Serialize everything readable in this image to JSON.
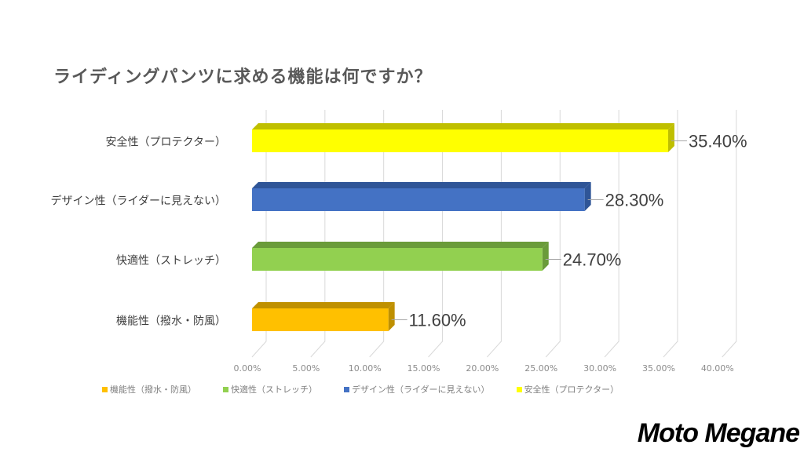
{
  "chart_data": {
    "type": "bar",
    "orientation": "horizontal",
    "style": "3d",
    "title": "ライディングパンツに求める機能は何ですか？",
    "categories": [
      "安全性（プロテクター）",
      "デザイン性（ライダーに見えない）",
      "快適性（ストレッチ）",
      "機能性（撥水・防風）"
    ],
    "values": [
      35.4,
      28.3,
      24.7,
      11.6
    ],
    "data_labels": [
      "35.40%",
      "28.30%",
      "24.70%",
      "11.60%"
    ],
    "colors": [
      "#FFFF00",
      "#4472C4",
      "#92D050",
      "#FFC000"
    ],
    "side_colors": [
      "#BFBF00",
      "#2F5597",
      "#6A9B3A",
      "#BF9000"
    ],
    "xlim": [
      0,
      40
    ],
    "xticks": [
      "0.00%",
      "5.00%",
      "10.00%",
      "15.00%",
      "20.00%",
      "25.00%",
      "30.00%",
      "35.00%",
      "40.00%"
    ],
    "grid": true,
    "legend": [
      "機能性（撥水・防風）",
      "快適性（ストレッチ）",
      "デザイン性（ライダーに見えない）",
      "安全性（プロテクター）"
    ],
    "legend_colors": [
      "#FFC000",
      "#92D050",
      "#4472C4",
      "#FFFF00"
    ],
    "legend_placement": "bottom"
  },
  "brand": "Moto Megane"
}
